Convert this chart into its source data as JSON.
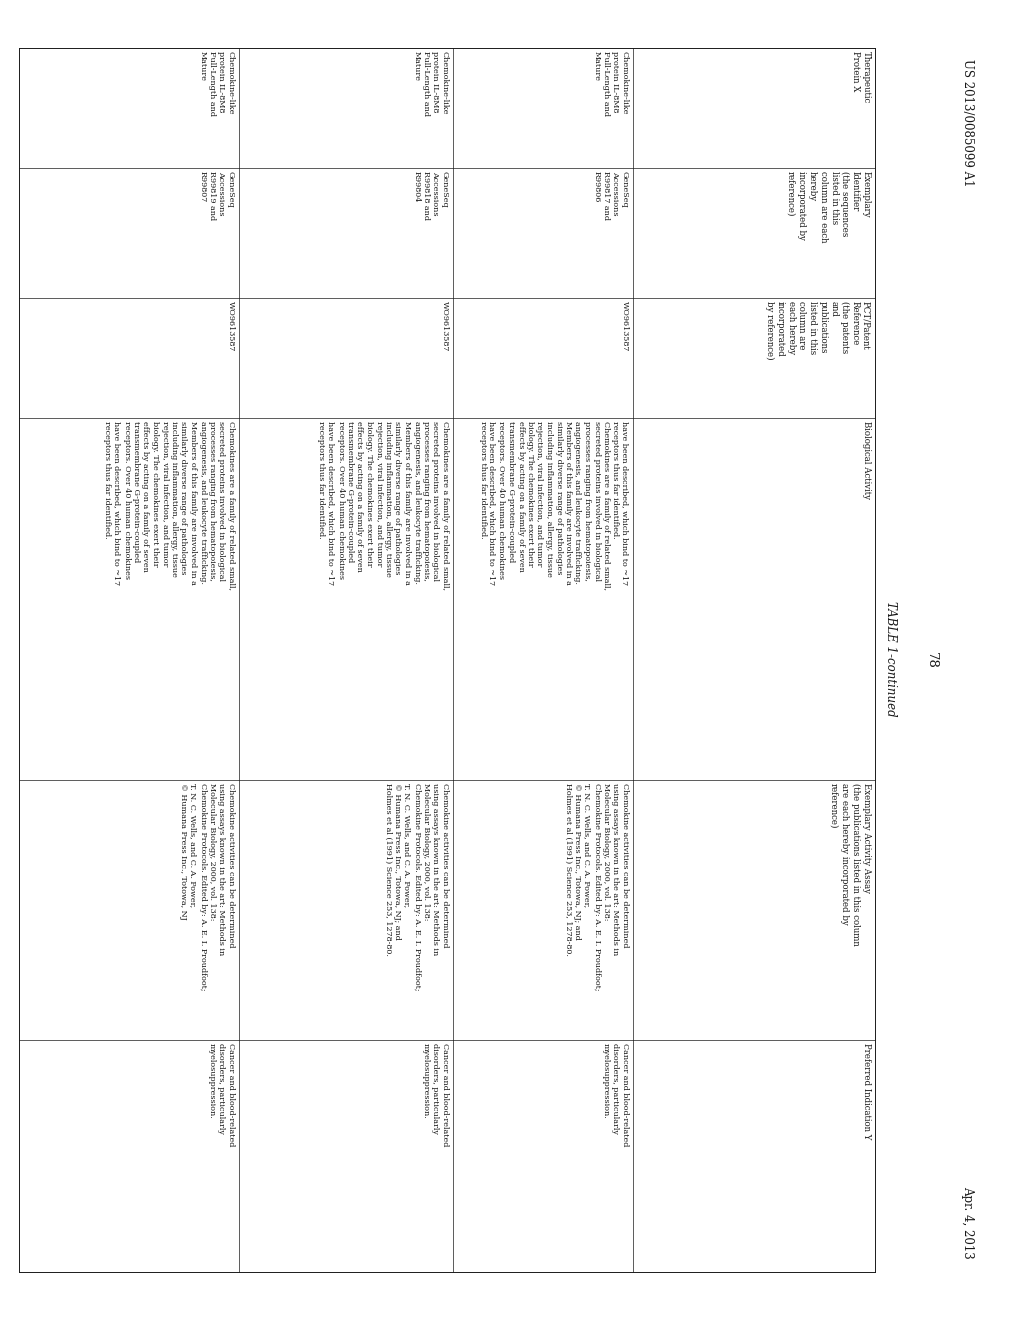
{
  "page_number": "78",
  "patent_number": "US 2013/0085099 A1",
  "patent_date": "Apr. 4, 2013",
  "table_title": "TABLE 1-continued",
  "background_color": "#ffffff",
  "text_color": "#1a1a1a",
  "col_headers": [
    "Therapeutic\nProtein X",
    "Exemplary\nIdentifier\n(the sequences\nlisted in this\ncolumn are each\nhereby\nincorporated by\nreference)",
    "PCT/Patent\nReference\n(the patents\nand\npublications\nlisted in this\ncolumn are\neach hereby\nincorporated\nby reference)",
    "Biological Activity",
    "Exemplary Activity Assay\n(the publications listed in this column\nare each hereby incorporated by\nreference)",
    "Preferred Indication Y"
  ],
  "rows": [
    {
      "col1": "Chemokine-like\nprotein IL-8M8\nFull-Length and\nMature",
      "col2": "GeneSeq\nAccessions\nR99817 and\nR99806",
      "col3": "WO9613587",
      "col4": "have been described, which bind to ~17\nreceptors thus far identified.\nChemokines are a family of related small,\nsecreted proteins involved in biological\nprocesses ranging from hematopoiesis,\nangiogenesis, and leukocyte trafficking.\nMembers of this family are involved in a\nsimilarly diverse range of pathologies\nincluding inflammation, allergy, tissue\nrejection, viral infection, and tumor\nbiology. The chemokines exert their\neffects by acting on a family of seven\ntransmembrane G-protein-coupled\nreceptors. Over 40 human chemokines\nhave been described, which bind to ~17\nreceptors thus far identified.",
      "col5": "Chemokine activities can be determined\nusing assays known in the art: Methods in\nMolecular Biology, 2000, vol. 138:\nChemokine Protocols. Edited by: A. E. I. Proudfoot;\nT. N. C. Wells, and C. A. Power,\n© Humana Press Inc., Totowa, NJ; and\nHolmes et al (1991) Science 253, 1278-80.",
      "col6": "Cancer and blood-related\ndisorders, particularly\nmyelosuppression."
    },
    {
      "col1": "Chemokine-like\nprotein IL-8M8\nFull-Length and\nMature",
      "col2": "GeneSeq\nAccessions\nR99818 and\nR99804",
      "col3": "WO9613587",
      "col4": "Chemokines are a family of related small,\nsecreted proteins involved in biological\nprocesses ranging from hematopoiesis,\nangiogenesis, and leukocyte trafficking.\nMembers of this family are involved in a\nsimilarly diverse range of pathologies\nincluding inflammation, allergy, tissue\nrejection, viral infection, and tumor\nbiology. The chemokines exert their\neffects by acting on a family of seven\ntransmembrane G-protein-coupled\nreceptors. Over 40 human chemokines\nhave been described, which bind to ~17\nreceptors thus far identified.",
      "col5": "Chemokine activities can be determined\nusing assays known in the art: Methods in\nMolecular Biology, 2000, vol. 138:\nChemokine Protocols. Edited by: A. E. I. Proudfoot;\nT. N. C. Wells, and C. A. Power,\n© Humana Press Inc., Totowa, NJ; and\nHolmes et al (1991) Science 253, 1278-80.",
      "col6": "Cancer and blood-related\ndisorders, particularly\nmyelosuppression."
    },
    {
      "col1": "Chemokine-like\nprotein IL-8M8\nFull-Length and\nMature",
      "col2": "GeneSeq\nAccessions\nR99819 and\nR99807",
      "col3": "WO9613587",
      "col4": "Chemokines are a family of related small,\nsecreted proteins involved in biological\nprocesses ranging from hematopoiesis,\nangiogenesis, and leukocyte trafficking.\nMembers of this family are involved in a\nsimilarly diverse range of pathologies\nincluding inflammation, allergy, tissue\nrejection, viral infection, and tumor\nbiology. The chemokines exert their\neffects by acting on a family of seven\ntransmembrane G-protein-coupled\nreceptors. Over 40 human chemokines\nhave been described, which bind to ~17\nreceptors thus far identified.",
      "col5": "Chemokine activities can be determined\nusing assays known in the art: Methods in\nMolecular Biology, 2000, vol. 138:\nChemokine Protocols. Edited by: A. E. I. Proudfoot;\nT. N. C. Wells, and C. A. Power,\n© Humana Press Inc., Totowa, NJ",
      "col6": "Cancer and blood-related\ndisorders, particularly\nmyelosuppression."
    }
  ]
}
